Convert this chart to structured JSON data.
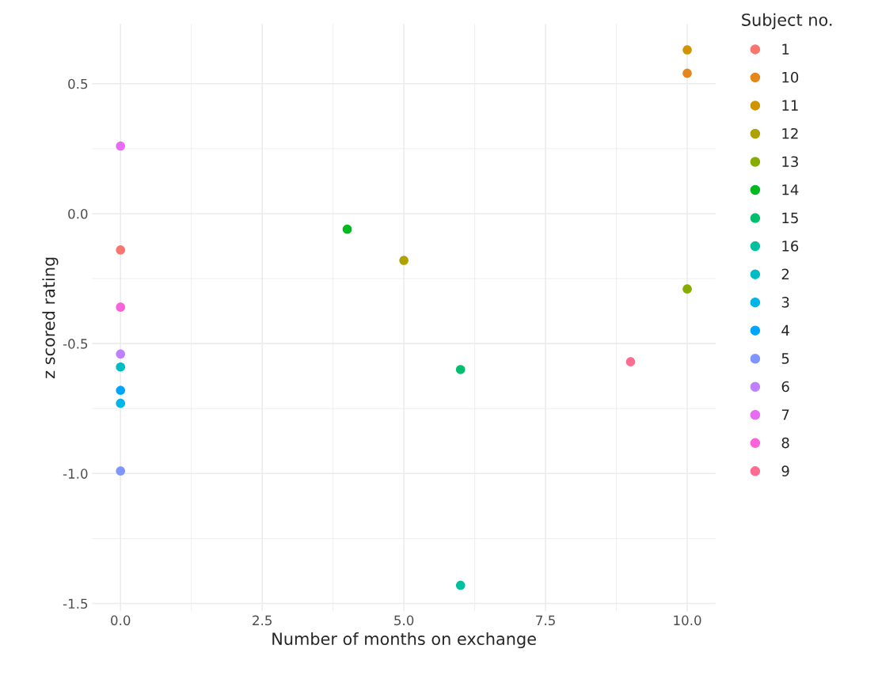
{
  "chart_data": {
    "type": "scatter",
    "xlabel": "Number of months on exchange",
    "ylabel": "z scored rating",
    "legend_title": "Subject no.",
    "xlim": [
      -0.5,
      10.5
    ],
    "ylim": [
      -1.53,
      0.73
    ],
    "xticks": [
      {
        "value": 0,
        "label": "0.0"
      },
      2.5,
      {
        "value": 5,
        "label": "5.0"
      },
      {
        "value": 7.5,
        "label": "7.5"
      },
      {
        "value": 10,
        "label": "10.0"
      }
    ],
    "yticks": [
      -1.5,
      {
        "value": -1.0,
        "label": "-1.0"
      },
      -0.5,
      {
        "value": 0.0,
        "label": "0.0"
      },
      0.5
    ],
    "grid": true,
    "legend": "right",
    "marker": "circle",
    "series": [
      {
        "name": "1",
        "color": "#F8766D",
        "x": [
          0
        ],
        "values": [
          -0.14
        ]
      },
      {
        "name": "10",
        "color": "#E7861B",
        "x": [
          10
        ],
        "values": [
          0.54
        ]
      },
      {
        "name": "11",
        "color": "#CF9400",
        "x": [
          10
        ],
        "values": [
          0.63
        ]
      },
      {
        "name": "12",
        "color": "#AFA100",
        "x": [
          5
        ],
        "values": [
          -0.18
        ]
      },
      {
        "name": "13",
        "color": "#86AC00",
        "x": [
          10
        ],
        "values": [
          -0.29
        ]
      },
      {
        "name": "14",
        "color": "#00B81F",
        "x": [
          4
        ],
        "values": [
          -0.06
        ]
      },
      {
        "name": "15",
        "color": "#00BE6C",
        "x": [
          6
        ],
        "values": [
          -0.6
        ]
      },
      {
        "name": "16",
        "color": "#00C0A0",
        "x": [
          6
        ],
        "values": [
          -1.43
        ]
      },
      {
        "name": "2",
        "color": "#00BDC4",
        "x": [
          0
        ],
        "values": [
          -0.59
        ]
      },
      {
        "name": "3",
        "color": "#00B5E8",
        "x": [
          0
        ],
        "values": [
          -0.73
        ]
      },
      {
        "name": "4",
        "color": "#00A5FF",
        "x": [
          0
        ],
        "values": [
          -0.68
        ]
      },
      {
        "name": "5",
        "color": "#7F96FF",
        "x": [
          0
        ],
        "values": [
          -0.99
        ]
      },
      {
        "name": "6",
        "color": "#BF80FF",
        "x": [
          0
        ],
        "values": [
          -0.54
        ]
      },
      {
        "name": "7",
        "color": "#E76BF3",
        "x": [
          0
        ],
        "values": [
          0.26
        ]
      },
      {
        "name": "8",
        "color": "#FA62DB",
        "x": [
          0
        ],
        "values": [
          -0.36
        ]
      },
      {
        "name": "9",
        "color": "#FF6C91",
        "x": [
          9
        ],
        "values": [
          -0.57
        ]
      }
    ]
  }
}
